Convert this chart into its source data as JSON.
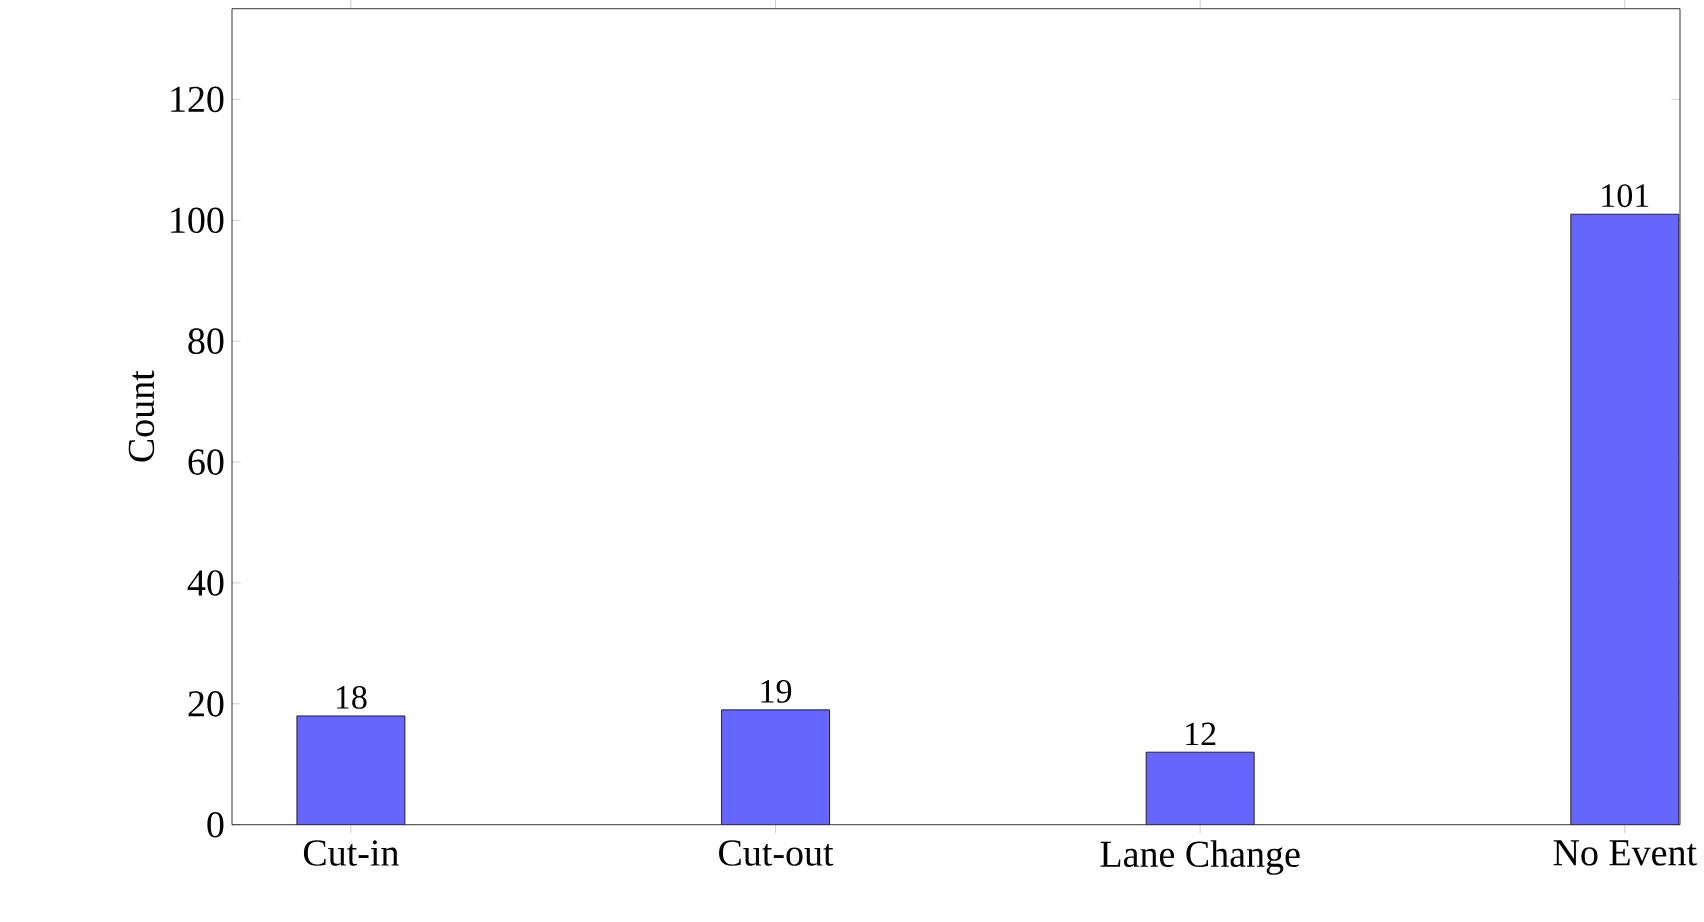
{
  "chart_data": {
    "type": "bar",
    "ylabel": "Count",
    "categories": [
      "Cut-in",
      "Cut-out",
      "Lane Change",
      "No Event"
    ],
    "values": [
      18,
      19,
      12,
      101
    ],
    "color": "#6666ff",
    "ylim": [
      0,
      135
    ],
    "yticks": [
      0,
      20,
      40,
      60,
      80,
      100,
      120
    ],
    "data_labels": true
  }
}
